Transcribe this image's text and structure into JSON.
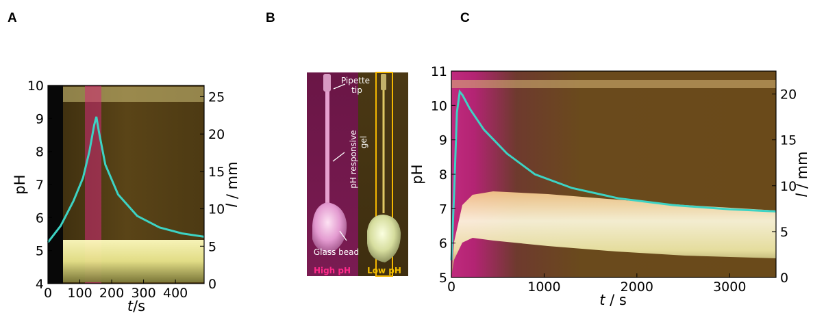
{
  "panels": {
    "a": "A",
    "b": "B",
    "c": "C"
  },
  "photo": {
    "label_tip": "Pipette tip",
    "label_tip_l1": "Pipette",
    "label_tip_l2": "tip",
    "label_gel_l1": "pH responsive",
    "label_gel_l2": "gel",
    "label_bead": "Glass bead",
    "label_high": "High pH",
    "label_low": "Low pH"
  },
  "colors": {
    "curve": "#3dd3c4",
    "high_ph": "#e8197a",
    "low_ph": "#f5b800",
    "background_photo": "#4a3a14"
  },
  "chart_data": [
    {
      "id": "A",
      "type": "line",
      "xlabel": "t / s",
      "ylabel": "pH",
      "y2label": "l / mm",
      "xlim": [
        0,
        490
      ],
      "ylim": [
        4,
        10
      ],
      "y2lim": [
        0,
        26.5
      ],
      "x_ticks": [
        0,
        100,
        200,
        300,
        400
      ],
      "y_ticks": [
        4,
        5,
        6,
        7,
        8,
        9,
        10
      ],
      "y2_ticks": [
        0,
        5,
        10,
        15,
        20,
        25
      ],
      "series": [
        {
          "x": [
            0,
            40,
            80,
            110,
            130,
            145,
            152,
            160,
            180,
            220,
            280,
            350,
            420,
            490
          ],
          "y": [
            5.25,
            5.75,
            6.5,
            7.2,
            8.0,
            8.8,
            9.05,
            8.6,
            7.6,
            6.7,
            6.05,
            5.7,
            5.52,
            5.42
          ]
        }
      ]
    },
    {
      "id": "C",
      "type": "line",
      "xlabel": "t / s",
      "ylabel": "pH",
      "y2label": "l / mm",
      "xlim": [
        0,
        3500
      ],
      "ylim": [
        5,
        11
      ],
      "y2lim": [
        0,
        22.5
      ],
      "x_ticks": [
        0,
        1000,
        2000,
        3000
      ],
      "y_ticks": [
        5,
        6,
        7,
        8,
        9,
        10,
        11
      ],
      "y2_ticks": [
        0,
        5,
        10,
        15,
        20
      ],
      "series": [
        {
          "x": [
            0,
            30,
            60,
            90,
            120,
            200,
            350,
            600,
            900,
            1300,
            1800,
            2400,
            3000,
            3500
          ],
          "y": [
            5.5,
            7.5,
            9.8,
            10.4,
            10.3,
            9.9,
            9.3,
            8.6,
            8.0,
            7.6,
            7.3,
            7.1,
            6.98,
            6.92
          ]
        }
      ]
    }
  ]
}
